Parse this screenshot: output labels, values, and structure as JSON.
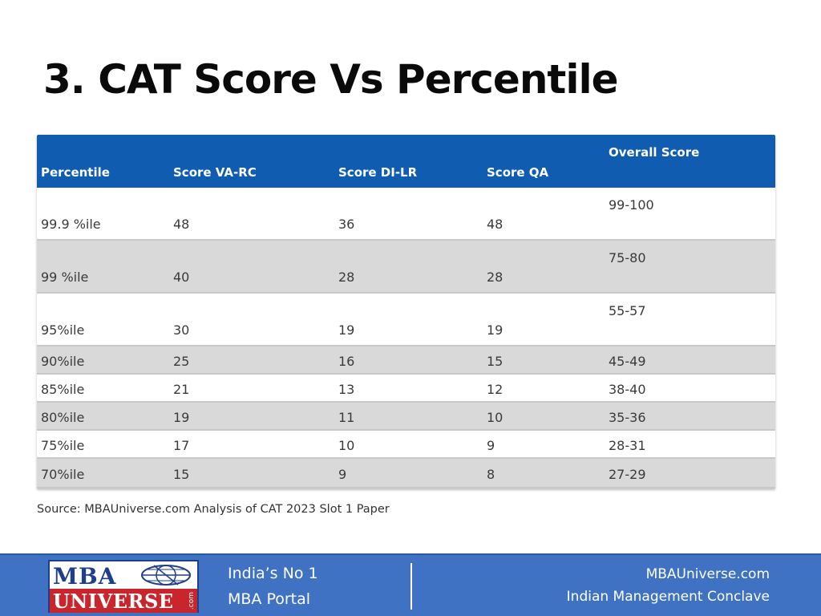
{
  "title": "3. CAT Score Vs Percentile",
  "table": {
    "headers": {
      "percentile": "Percentile",
      "varc": "Score VA-RC",
      "dilr": "Score DI-LR",
      "qa": "Score QA",
      "overall": "Overall Score"
    },
    "rows": [
      {
        "percentile": "99.9 %ile",
        "varc": "48",
        "dilr": "36",
        "qa": "48",
        "overall": "99-100"
      },
      {
        "percentile": "99 %ile",
        "varc": "40",
        "dilr": "28",
        "qa": "28",
        "overall": "75-80"
      },
      {
        "percentile": "95%ile",
        "varc": "30",
        "dilr": "19",
        "qa": "19",
        "overall": "55-57"
      },
      {
        "percentile": "90%ile",
        "varc": "25",
        "dilr": "16",
        "qa": "15",
        "overall": "45-49"
      },
      {
        "percentile": "85%ile",
        "varc": "21",
        "dilr": "13",
        "qa": "12",
        "overall": "38-40"
      },
      {
        "percentile": "80%ile",
        "varc": "19",
        "dilr": "11",
        "qa": "10",
        "overall": "35-36"
      },
      {
        "percentile": "75%ile",
        "varc": "17",
        "dilr": "10",
        "qa": "9",
        "overall": "28-31"
      },
      {
        "percentile": "70%ile",
        "varc": "15",
        "dilr": "9",
        "qa": "8",
        "overall": "27-29"
      }
    ]
  },
  "source": "Source: MBAUniverse.com Analysis of CAT 2023 Slot 1 Paper",
  "footer": {
    "logo_top": "MBA",
    "logo_bottom": "UNIVERSE",
    "logo_com": ".com",
    "tagline_line1": "India’s No 1",
    "tagline_line2": "MBA Portal",
    "right_line1": "MBAUniverse.com",
    "right_line2": "Indian Management Conclave"
  },
  "colors": {
    "header_blue": "#0f5cb0",
    "footer_blue": "#3f72c2",
    "row_gray": "#d9d9d9",
    "logo_red": "#c9252c",
    "logo_navy": "#1f3f8a"
  }
}
